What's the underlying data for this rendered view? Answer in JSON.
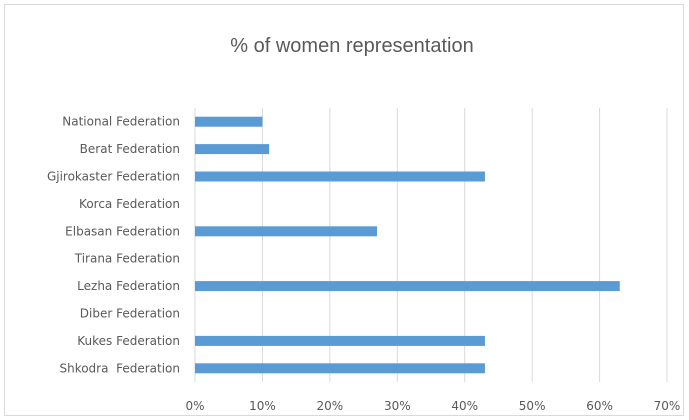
{
  "chart_data": {
    "type": "bar",
    "orientation": "horizontal",
    "title": "% of women representation",
    "categories": [
      "National Federation",
      "Berat Federation",
      "Gjirokaster Federation",
      "Korca Federation",
      "Elbasan Federation",
      "Tirana Federation",
      "Lezha Federation",
      "Diber Federation",
      "Kukes Federation",
      "Shkodra  Federation"
    ],
    "values": [
      0.1,
      0.11,
      0.43,
      0,
      0.27,
      0,
      0.63,
      0,
      0.43,
      0.43
    ],
    "xlim": [
      0,
      0.7
    ],
    "x_ticks": [
      0,
      0.1,
      0.2,
      0.3,
      0.4,
      0.5,
      0.6,
      0.7
    ],
    "x_tick_labels": [
      "0%",
      "10%",
      "20%",
      "30%",
      "40%",
      "50%",
      "60%",
      "70%"
    ],
    "grid": "vertical",
    "legend": "none",
    "bar_color": "#5b9bd5"
  }
}
